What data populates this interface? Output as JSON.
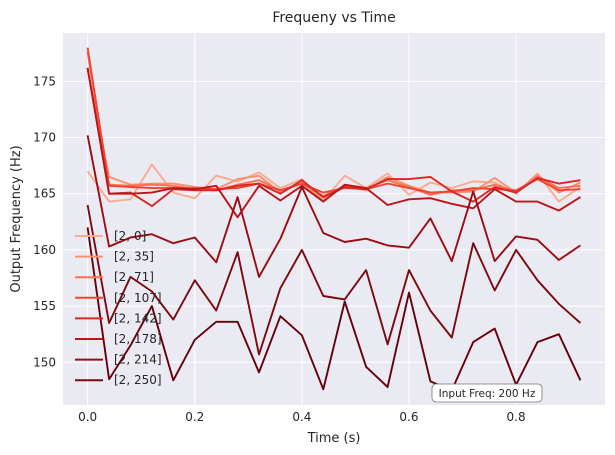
{
  "chart_data": {
    "type": "line",
    "title": "Frequeny vs Time",
    "xlabel": "Time (s)",
    "ylabel": "Output Frequency (Hz)",
    "xlim": [
      -0.046,
      0.966
    ],
    "ylim": [
      146.2,
      179.3
    ],
    "xticks": [
      0.0,
      0.2,
      0.4,
      0.6,
      0.8
    ],
    "xtick_labels": [
      "0.0",
      "0.2",
      "0.4",
      "0.6",
      "0.8"
    ],
    "yticks": [
      150,
      155,
      160,
      165,
      170,
      175
    ],
    "ytick_labels": [
      "150",
      "155",
      "160",
      "165",
      "170",
      "175"
    ],
    "grid": true,
    "style": "seaborn-darkgrid",
    "legend_position": "lower-left",
    "annotation": "Input Freq: 200 Hz",
    "x": [
      0.0,
      0.04,
      0.08,
      0.12,
      0.16,
      0.2,
      0.24,
      0.28,
      0.32,
      0.36,
      0.4,
      0.44,
      0.48,
      0.52,
      0.56,
      0.6,
      0.64,
      0.68,
      0.72,
      0.76,
      0.8,
      0.84,
      0.88,
      0.92
    ],
    "series": [
      {
        "name": "[2, 0]",
        "color": "#fcab8f",
        "values": [
          167.0,
          164.3,
          164.5,
          167.6,
          165.1,
          164.6,
          166.6,
          166.1,
          166.9,
          165.5,
          166.3,
          164.4,
          166.6,
          165.5,
          166.8,
          164.9,
          166.0,
          165.5,
          166.1,
          166.0,
          165.0,
          166.8,
          164.3,
          165.6
        ]
      },
      {
        "name": "[2, 35]",
        "color": "#fc8f6f",
        "values": [
          176.0,
          166.5,
          165.8,
          165.9,
          165.9,
          165.6,
          165.4,
          166.3,
          166.6,
          165.1,
          166.0,
          164.4,
          165.7,
          165.3,
          166.5,
          165.7,
          165.1,
          165.1,
          165.2,
          166.4,
          165.1,
          166.7,
          165.1,
          166.0
        ]
      },
      {
        "name": "[2, 71]",
        "color": "#fb7050",
        "values": [
          177.6,
          165.8,
          165.7,
          165.8,
          165.7,
          165.4,
          165.3,
          165.8,
          166.2,
          165.3,
          165.9,
          164.8,
          165.7,
          165.5,
          166.2,
          165.6,
          164.9,
          165.3,
          165.3,
          165.8,
          165.2,
          166.5,
          165.5,
          165.7
        ]
      },
      {
        "name": "[2, 107]",
        "color": "#f14432",
        "values": [
          178.0,
          165.7,
          165.6,
          165.5,
          165.5,
          165.5,
          165.4,
          165.5,
          165.9,
          165.3,
          165.9,
          165.1,
          165.5,
          165.4,
          165.9,
          165.5,
          165.1,
          165.2,
          165.5,
          165.4,
          165.3,
          166.3,
          165.3,
          165.4
        ]
      },
      {
        "name": "[2, 142]",
        "color": "#d92723",
        "values": [
          176.2,
          165.0,
          165.1,
          163.9,
          165.4,
          165.3,
          165.3,
          165.7,
          165.9,
          165.0,
          166.2,
          164.7,
          165.6,
          165.4,
          166.3,
          166.3,
          166.5,
          165.2,
          164.3,
          165.6,
          165.1,
          166.4,
          165.9,
          166.2
        ]
      },
      {
        "name": "[2, 178]",
        "color": "#bb151a",
        "values": [
          176.2,
          165.0,
          165.0,
          165.1,
          165.5,
          165.4,
          165.7,
          162.9,
          165.7,
          164.4,
          165.7,
          164.3,
          165.8,
          165.5,
          164.0,
          164.5,
          164.6,
          164.1,
          163.7,
          165.4,
          164.3,
          164.3,
          163.5,
          164.7
        ]
      },
      {
        "name": "[2, 214]",
        "color": "#9a0c14",
        "values": [
          170.2,
          160.3,
          161.1,
          161.4,
          160.6,
          161.1,
          158.9,
          164.7,
          157.6,
          161.0,
          165.6,
          161.5,
          160.7,
          161.0,
          160.4,
          160.2,
          162.8,
          159.0,
          165.2,
          159.0,
          161.2,
          160.9,
          159.1,
          160.4
        ]
      },
      {
        "name": "[2, 250]",
        "color": "#7d0910",
        "values": [
          164.0,
          153.5,
          157.6,
          156.3,
          153.8,
          157.3,
          154.6,
          159.8,
          150.7,
          156.6,
          160.0,
          155.9,
          155.6,
          158.2,
          151.6,
          158.2,
          154.6,
          152.2,
          160.6,
          156.4,
          160.0,
          157.3,
          155.2,
          153.5
        ]
      },
      {
        "name": "",
        "color": "#67000d",
        "values": [
          162.0,
          148.5,
          151.5,
          155.0,
          148.4,
          152.0,
          153.6,
          153.6,
          149.1,
          154.1,
          152.4,
          147.6,
          155.4,
          149.6,
          147.8,
          156.2,
          148.3,
          147.5,
          151.8,
          153.0,
          148.0,
          151.8,
          152.5,
          148.4
        ]
      }
    ]
  }
}
